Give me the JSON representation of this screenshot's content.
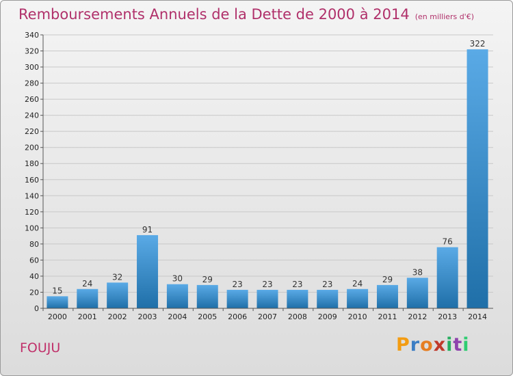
{
  "chart_data": {
    "type": "bar",
    "title": "Remboursements Annuels de la Dette de 2000 à 2014",
    "unit": "(en milliers d'€)",
    "categories": [
      "2000",
      "2001",
      "2002",
      "2003",
      "2004",
      "2005",
      "2006",
      "2007",
      "2008",
      "2009",
      "2010",
      "2011",
      "2012",
      "2013",
      "2014"
    ],
    "values": [
      15,
      24,
      32,
      91,
      30,
      29,
      23,
      23,
      23,
      23,
      24,
      29,
      38,
      76,
      322
    ],
    "ylim": [
      0,
      340
    ],
    "yticks": [
      0,
      20,
      40,
      60,
      80,
      100,
      120,
      140,
      160,
      180,
      200,
      220,
      240,
      260,
      280,
      300,
      320,
      340
    ],
    "grid": true,
    "xlabel": "",
    "ylabel": ""
  },
  "commune": "FOUJU",
  "logo": {
    "letters": [
      "P",
      "r",
      "o",
      "x",
      "i",
      "t",
      "i"
    ],
    "colors": [
      "#f39c12",
      "#3b7dc4",
      "#e67e22",
      "#c0392b",
      "#27ae60",
      "#8e44ad",
      "#2ecc71"
    ]
  },
  "colors": {
    "title": "#b0306a",
    "bar_light": "#5aaae6",
    "bar_dark": "#1f6fa8"
  }
}
